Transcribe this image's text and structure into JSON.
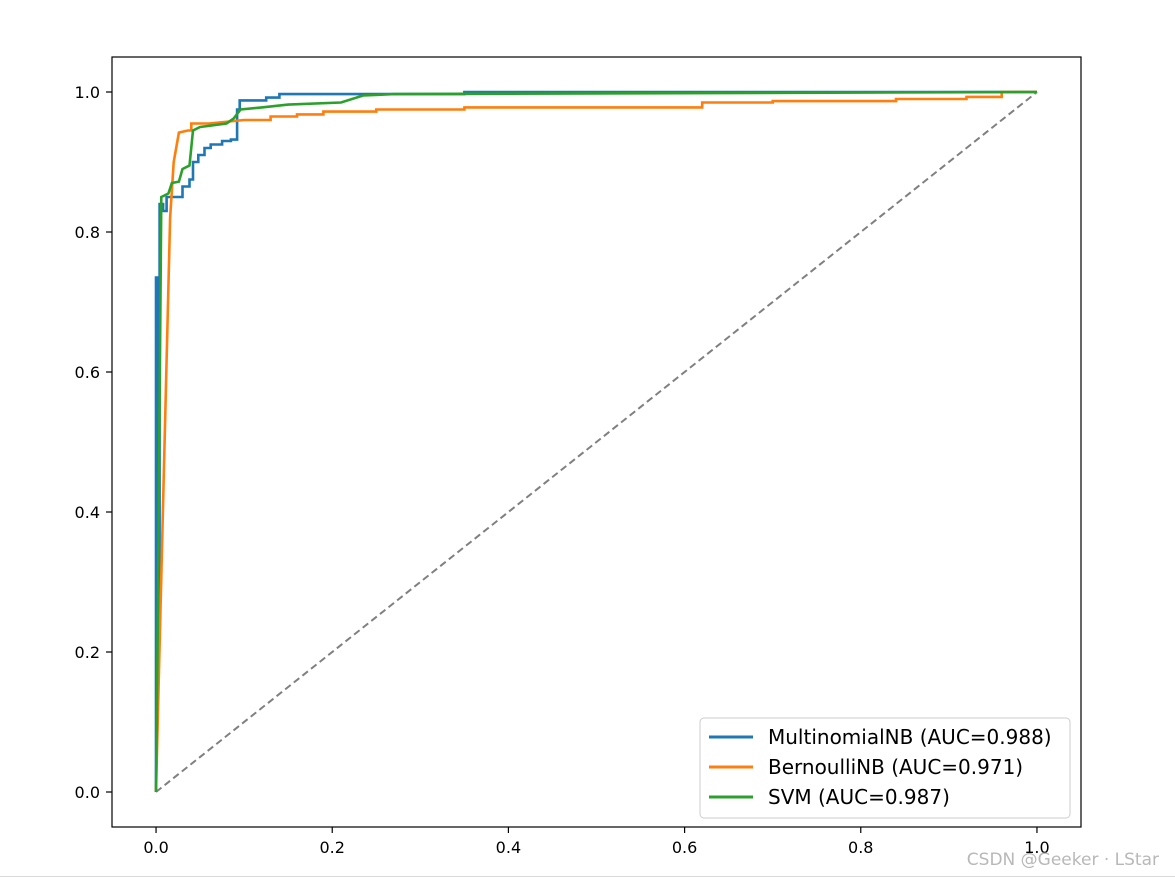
{
  "watermark": "CSDN @Geeker · LStar",
  "chart_data": {
    "type": "line",
    "title": "",
    "xlabel": "",
    "ylabel": "",
    "xlim": [
      -0.05,
      1.05
    ],
    "ylim": [
      -0.05,
      1.05
    ],
    "grid": false,
    "legend_position": "lower-right",
    "xticks": [
      0.0,
      0.2,
      0.4,
      0.6,
      0.8,
      1.0
    ],
    "xtick_labels": [
      "0.0",
      "0.2",
      "0.4",
      "0.6",
      "0.8",
      "1.0"
    ],
    "yticks": [
      0.0,
      0.2,
      0.4,
      0.6,
      0.8,
      1.0
    ],
    "ytick_labels": [
      "0.0",
      "0.2",
      "0.4",
      "0.6",
      "0.8",
      "1.0"
    ],
    "series": [
      {
        "name": "MultinomialNB (AUC=0.988)",
        "color": "#1f77b4",
        "x": [
          0.0,
          0.0,
          0.002,
          0.002,
          0.004,
          0.004,
          0.008,
          0.008,
          0.012,
          0.012,
          0.02,
          0.02,
          0.03,
          0.03,
          0.038,
          0.038,
          0.042,
          0.042,
          0.048,
          0.048,
          0.055,
          0.055,
          0.062,
          0.062,
          0.075,
          0.075,
          0.085,
          0.085,
          0.092,
          0.092,
          0.095,
          0.095,
          0.125,
          0.125,
          0.14,
          0.14,
          0.3,
          0.3,
          0.35,
          0.35,
          1.0
        ],
        "y": [
          0.0,
          0.735,
          0.735,
          0.24,
          0.24,
          0.84,
          0.84,
          0.83,
          0.83,
          0.85,
          0.85,
          0.85,
          0.85,
          0.865,
          0.865,
          0.875,
          0.875,
          0.9,
          0.9,
          0.91,
          0.91,
          0.92,
          0.92,
          0.925,
          0.925,
          0.93,
          0.93,
          0.932,
          0.932,
          0.975,
          0.975,
          0.988,
          0.988,
          0.992,
          0.992,
          0.997,
          0.997,
          0.997,
          0.997,
          1.0,
          1.0
        ]
      },
      {
        "name": "BernoulliNB (AUC=0.971)",
        "color": "#ff7f0e",
        "x": [
          0.0,
          0.0,
          0.016,
          0.02,
          0.026,
          0.036,
          0.04,
          0.04,
          0.06,
          0.1,
          0.13,
          0.13,
          0.16,
          0.16,
          0.19,
          0.19,
          0.25,
          0.25,
          0.35,
          0.35,
          0.62,
          0.62,
          0.7,
          0.7,
          0.84,
          0.84,
          0.92,
          0.92,
          0.96,
          0.96,
          1.0
        ],
        "y": [
          0.0,
          0.0,
          0.82,
          0.9,
          0.942,
          0.945,
          0.945,
          0.955,
          0.955,
          0.96,
          0.96,
          0.965,
          0.965,
          0.968,
          0.968,
          0.972,
          0.972,
          0.975,
          0.975,
          0.978,
          0.978,
          0.985,
          0.985,
          0.987,
          0.987,
          0.99,
          0.99,
          0.993,
          0.993,
          1.0,
          1.0
        ]
      },
      {
        "name": "SVM (AUC=0.987)",
        "color": "#2ca02c",
        "x": [
          0.0,
          0.002,
          0.002,
          0.006,
          0.006,
          0.014,
          0.014,
          0.018,
          0.018,
          0.026,
          0.026,
          0.03,
          0.03,
          0.038,
          0.038,
          0.042,
          0.042,
          0.05,
          0.05,
          0.08,
          0.08,
          0.088,
          0.088,
          0.096,
          0.096,
          0.12,
          0.12,
          0.15,
          0.15,
          0.21,
          0.21,
          0.235,
          0.235,
          0.27,
          0.27,
          1.0
        ],
        "y": [
          0.0,
          0.24,
          0.24,
          0.85,
          0.85,
          0.855,
          0.855,
          0.87,
          0.87,
          0.872,
          0.872,
          0.89,
          0.89,
          0.895,
          0.895,
          0.945,
          0.945,
          0.95,
          0.95,
          0.955,
          0.955,
          0.962,
          0.962,
          0.975,
          0.975,
          0.978,
          0.978,
          0.982,
          0.982,
          0.985,
          0.985,
          0.995,
          0.995,
          0.997,
          0.997,
          1.0
        ]
      }
    ],
    "reference_line": {
      "x": [
        0.0,
        1.0
      ],
      "y": [
        0.0,
        1.0
      ],
      "color": "#808080",
      "style": "dashed"
    }
  }
}
